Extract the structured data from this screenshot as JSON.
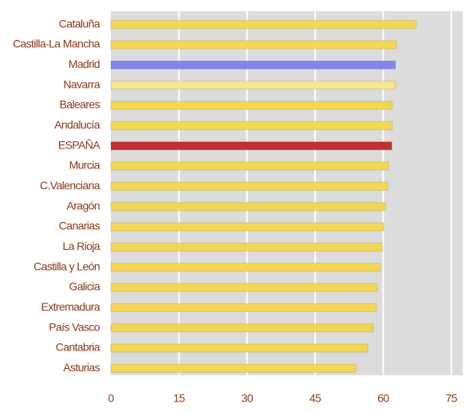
{
  "chart_data": {
    "type": "barh",
    "categories": [
      "Cataluña",
      "Castilla-La Mancha",
      "Madrid",
      "Navarra",
      "Baleares",
      "Andalucía",
      "ESPAÑA",
      "Murcia",
      "C.Valenciana",
      "Aragón",
      "Canarias",
      "La Rioja",
      "Castilla y León",
      "Galicia",
      "Extremadura",
      "País Vasco",
      "Cantabria",
      "Asturias"
    ],
    "values": [
      67.3,
      62.9,
      62.7,
      62.6,
      62.0,
      62.0,
      61.9,
      61.2,
      61.0,
      60.5,
      60.1,
      59.8,
      59.4,
      58.7,
      58.5,
      57.8,
      56.6,
      54.0
    ],
    "colors": [
      "#f4d94e",
      "#f4d94e",
      "#8484ee",
      "#f7e68e",
      "#f4d94e",
      "#f4d94e",
      "#c42f2f",
      "#f4d94e",
      "#f4d94e",
      "#f4d94e",
      "#f4d94e",
      "#f4d94e",
      "#f4d94e",
      "#f4d94e",
      "#f4d94e",
      "#f4d94e",
      "#f4d94e",
      "#f4d94e"
    ],
    "xlim": [
      0,
      77.5
    ],
    "xticks": [
      0,
      15,
      30,
      45,
      60,
      75
    ],
    "grid": true
  }
}
